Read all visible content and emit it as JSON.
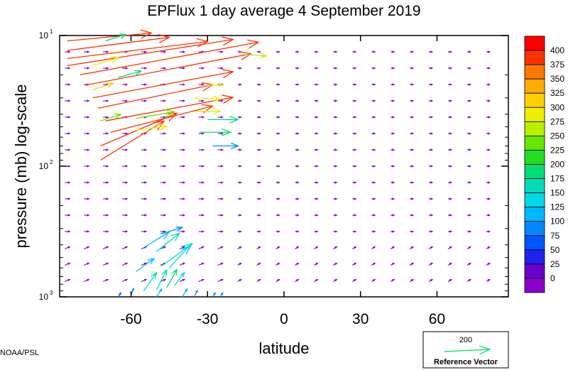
{
  "chart_data": {
    "type": "vector-field",
    "title": "EPFlux  1 day average  4 September 2019",
    "xlabel": "latitude",
    "ylabel": "pressure (mb)  log-scale",
    "xlim": [
      -88,
      88
    ],
    "ylim_pressure_mb": [
      1000,
      10
    ],
    "y_scale": "log",
    "x_ticks": [
      {
        "value": -60,
        "label": "-60"
      },
      {
        "value": -30,
        "label": "-30"
      },
      {
        "value": 0,
        "label": "0"
      },
      {
        "value": 30,
        "label": "30"
      },
      {
        "value": 60,
        "label": "60"
      }
    ],
    "y_ticks": [
      {
        "value": 10,
        "base": "10",
        "exp": "1"
      },
      {
        "value": 100,
        "base": "10",
        "exp": "2"
      },
      {
        "value": 1000,
        "base": "10",
        "exp": "3"
      }
    ],
    "colorbar": {
      "levels": [
        "400",
        "375",
        "350",
        "325",
        "300",
        "275",
        "250",
        "225",
        "200",
        "175",
        "150",
        "125",
        "100",
        "75",
        "50",
        "25",
        "0"
      ],
      "colors": [
        "#ff0000",
        "#ff3300",
        "#ff7700",
        "#ffaa00",
        "#ffd000",
        "#eeee00",
        "#b8f000",
        "#66e600",
        "#22dd22",
        "#00dd77",
        "#00dcb8",
        "#00d8e8",
        "#00b8ff",
        "#0088ff",
        "#0055ff",
        "#2222ee",
        "#6a00cc",
        "#8a00cc"
      ]
    },
    "reference": {
      "value": "200",
      "label": "Reference Vector",
      "color": "#22dd77"
    },
    "strong_vectors": [
      {
        "lat": -85,
        "p": 11,
        "dlat": 33,
        "dlog": -0.06,
        "mag": 420
      },
      {
        "lat": -85,
        "p": 13,
        "dlat": 40,
        "dlog": -0.1,
        "mag": 420
      },
      {
        "lat": -85,
        "p": 15,
        "dlat": 55,
        "dlog": -0.13,
        "mag": 420
      },
      {
        "lat": -85,
        "p": 17,
        "dlat": 65,
        "dlog": -0.2,
        "mag": 420
      },
      {
        "lat": -80,
        "p": 20,
        "dlat": 70,
        "dlog": -0.25,
        "mag": 420
      },
      {
        "lat": -78,
        "p": 24,
        "dlat": 65,
        "dlog": -0.24,
        "mag": 420
      },
      {
        "lat": -75,
        "p": 30,
        "dlat": 55,
        "dlog": -0.2,
        "mag": 420
      },
      {
        "lat": -73,
        "p": 36,
        "dlat": 45,
        "dlog": -0.18,
        "mag": 420
      },
      {
        "lat": -70,
        "p": 45,
        "dlat": 50,
        "dlog": -0.18,
        "mag": 420
      },
      {
        "lat": -68,
        "p": 55,
        "dlat": 40,
        "dlog": -0.2,
        "mag": 420
      },
      {
        "lat": -72,
        "p": 70,
        "dlat": 30,
        "dlog": -0.25,
        "mag": 420
      },
      {
        "lat": -72,
        "p": 90,
        "dlat": 25,
        "dlog": -0.3,
        "mag": 400
      },
      {
        "lat": -75,
        "p": 26,
        "dlat": 8,
        "dlog": -0.05,
        "mag": 330
      },
      {
        "lat": -65,
        "p": 21,
        "dlat": 9,
        "dlog": -0.05,
        "mag": 220
      },
      {
        "lat": -75,
        "p": 17,
        "dlat": 10,
        "dlog": -0.06,
        "mag": 300
      },
      {
        "lat": -70,
        "p": 11,
        "dlat": 8,
        "dlog": -0.05,
        "mag": 200
      },
      {
        "lat": -72,
        "p": 45,
        "dlat": 8,
        "dlog": -0.05,
        "mag": 270
      },
      {
        "lat": -58,
        "p": 43,
        "dlat": 15,
        "dlog": -0.05,
        "mag": 260
      },
      {
        "lat": -58,
        "p": 53,
        "dlat": 12,
        "dlog": -0.03,
        "mag": 300
      },
      {
        "lat": -35,
        "p": 38,
        "dlat": 10,
        "dlog": 0,
        "mag": 300
      },
      {
        "lat": -30,
        "p": 44,
        "dlat": 12,
        "dlog": 0,
        "mag": 200
      },
      {
        "lat": -33,
        "p": 55,
        "dlat": 12,
        "dlog": 0,
        "mag": 210
      },
      {
        "lat": -28,
        "p": 70,
        "dlat": 10,
        "dlog": 0,
        "mag": 120
      },
      {
        "lat": -35,
        "p": 30,
        "dlat": 10,
        "dlog": 0.01,
        "mag": 320
      },
      {
        "lat": -30,
        "p": 24,
        "dlat": 6,
        "dlog": 0,
        "mag": 300
      },
      {
        "lat": -15,
        "p": 14,
        "dlat": 8,
        "dlog": 0.01,
        "mag": 280
      },
      {
        "lat": -48,
        "p": 330,
        "dlat": 8,
        "dlog": -0.05,
        "mag": 110
      },
      {
        "lat": -55,
        "p": 420,
        "dlat": 10,
        "dlog": -0.12,
        "mag": 130
      },
      {
        "lat": -50,
        "p": 450,
        "dlat": 9,
        "dlog": -0.14,
        "mag": 180
      },
      {
        "lat": -48,
        "p": 580,
        "dlat": 12,
        "dlog": -0.17,
        "mag": 180
      },
      {
        "lat": -45,
        "p": 600,
        "dlat": 8,
        "dlog": -0.17,
        "mag": 170
      },
      {
        "lat": -58,
        "p": 640,
        "dlat": 7,
        "dlog": -0.1,
        "mag": 130
      },
      {
        "lat": -55,
        "p": 900,
        "dlat": 5,
        "dlog": -0.14,
        "mag": 180
      },
      {
        "lat": -50,
        "p": 880,
        "dlat": 4,
        "dlog": -0.15,
        "mag": 190
      },
      {
        "lat": -46,
        "p": 850,
        "dlat": 4,
        "dlog": -0.14,
        "mag": 200
      },
      {
        "lat": -43,
        "p": 820,
        "dlat": 4,
        "dlog": -0.1,
        "mag": 160
      },
      {
        "lat": -40,
        "p": 1000,
        "dlat": 2,
        "dlog": -0.06,
        "mag": 130
      },
      {
        "lat": -50,
        "p": 1000,
        "dlat": 2,
        "dlog": -0.06,
        "mag": 140
      },
      {
        "lat": -60,
        "p": 970,
        "dlat": 1,
        "dlog": -0.05,
        "mag": 120
      },
      {
        "lat": -35,
        "p": 980,
        "dlat": 1,
        "dlog": -0.04,
        "mag": 110
      },
      {
        "lat": -28,
        "p": 1000,
        "dlat": 1,
        "dlog": -0.03,
        "mag": 100
      },
      {
        "lat": -25,
        "p": 1000,
        "dlat": 1,
        "dlog": -0.03,
        "mag": 100
      },
      {
        "lat": -65,
        "p": 1000,
        "dlat": 1,
        "dlog": -0.03,
        "mag": 80
      }
    ]
  },
  "credit": "NOAA/PSL"
}
